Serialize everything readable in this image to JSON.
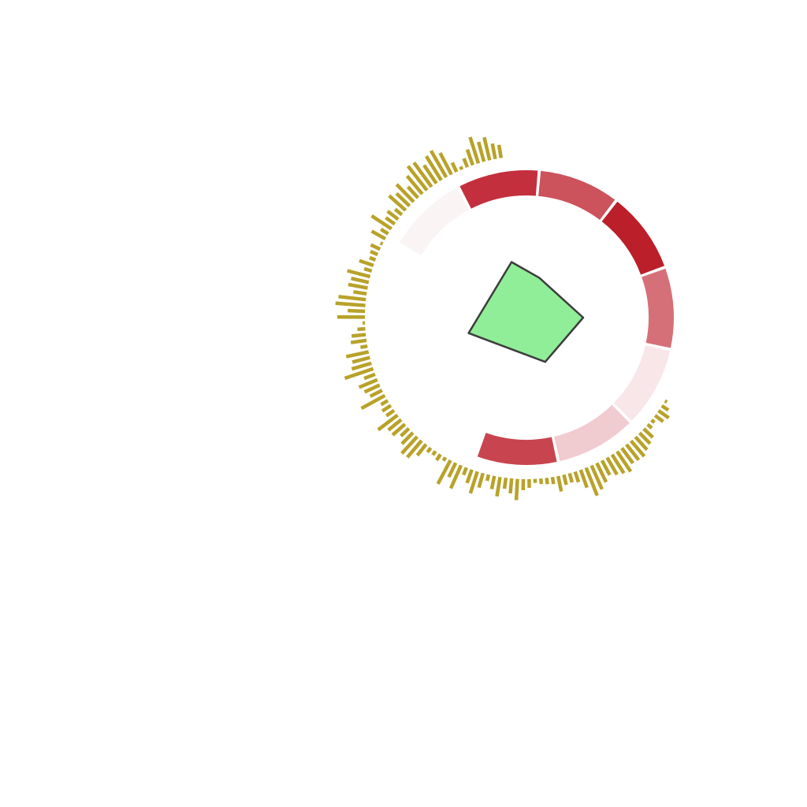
{
  "chart_data": [
    {
      "type": "bar",
      "name": "outer-histogram-ring",
      "color": "#b8a229",
      "angle_range_deg": [
        -60,
        90
      ],
      "values": [
        3,
        10,
        16,
        13,
        5,
        7,
        16,
        19,
        22,
        26,
        25,
        24,
        31,
        28,
        25,
        21,
        27,
        33,
        38,
        24,
        14,
        12,
        13,
        20,
        9,
        8,
        7,
        5,
        11,
        14,
        27,
        19,
        14,
        25,
        17,
        8,
        19,
        29,
        18,
        10,
        32,
        20,
        34,
        5,
        9,
        6,
        7,
        18,
        28,
        29,
        20,
        14,
        21,
        21,
        31,
        12,
        13,
        10,
        34,
        17,
        21,
        25,
        15,
        38,
        26,
        23,
        29,
        9,
        20,
        18,
        10,
        3,
        35,
        22,
        38,
        35,
        17,
        25,
        23,
        30,
        10,
        19,
        8,
        10,
        13,
        3,
        20,
        11,
        30,
        14,
        17,
        11,
        28,
        23,
        31,
        19,
        30,
        39,
        38,
        28,
        36,
        39,
        31,
        13,
        4,
        12,
        21,
        35,
        26,
        30,
        20,
        17
      ]
    },
    {
      "type": "heatmap",
      "name": "segment-ring",
      "angle_range_deg": [
        -60,
        200
      ],
      "colors": [
        "#faf4f5",
        "#c42f3d",
        "#cc525c",
        "#bb1f2a",
        "#d67078",
        "#f8e6e9",
        "#f0cbd0",
        "#c8454f"
      ]
    },
    {
      "type": "area",
      "name": "center-radar",
      "fill": "#90ee98",
      "stroke": "#3d3d3d",
      "points": [
        [
          90,
          72
        ],
        [
          18,
          53
        ],
        [
          -15,
          73
        ],
        [
          -105,
          76
        ],
        [
          157,
          61
        ]
      ]
    }
  ]
}
